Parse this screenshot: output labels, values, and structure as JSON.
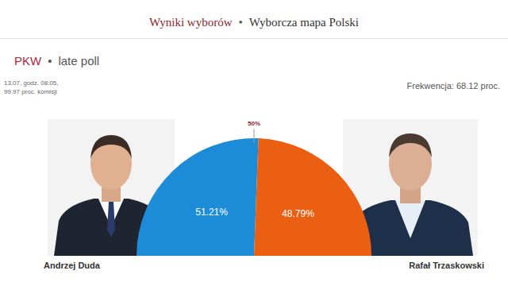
{
  "header": {
    "nav": [
      "Wyniki wyborów",
      "Wyborcza mapa Polski"
    ],
    "separator": "•"
  },
  "source": {
    "name": "PKW",
    "label": "late poll"
  },
  "timestamp": [
    "13.07, godz. 08:05,",
    "99.97 proc. komisji"
  ],
  "turnout": "Frekwencja: 68.12 proc.",
  "chart_data": {
    "type": "pie",
    "categories": [
      "Andrzej Duda",
      "Rafał Trzaskowski"
    ],
    "values": [
      51.21,
      48.79
    ],
    "value_labels": [
      "51.21%",
      "48.79%"
    ],
    "colors": [
      "#1d8cd8",
      "#ea5f12"
    ],
    "data_labels": true,
    "annotations": [
      {
        "value": 50,
        "label": "50%"
      }
    ]
  }
}
